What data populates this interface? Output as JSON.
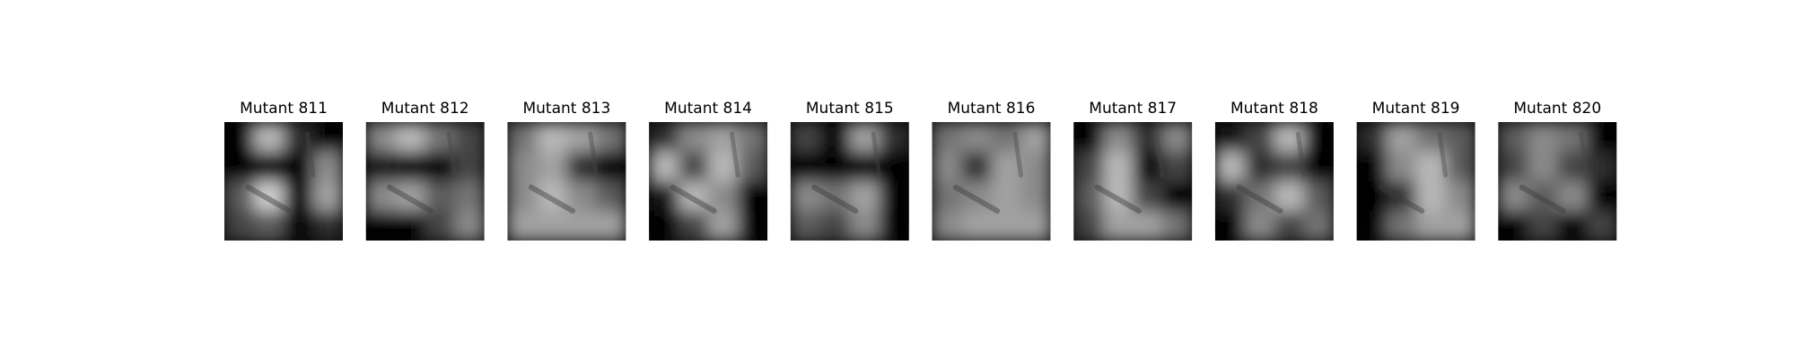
{
  "panels": [
    {
      "title": "Mutant 811"
    },
    {
      "title": "Mutant 812"
    },
    {
      "title": "Mutant 813"
    },
    {
      "title": "Mutant 814"
    },
    {
      "title": "Mutant 815"
    },
    {
      "title": "Mutant 816"
    },
    {
      "title": "Mutant 817"
    },
    {
      "title": "Mutant 818"
    },
    {
      "title": "Mutant 819"
    },
    {
      "title": "Mutant 820"
    }
  ]
}
